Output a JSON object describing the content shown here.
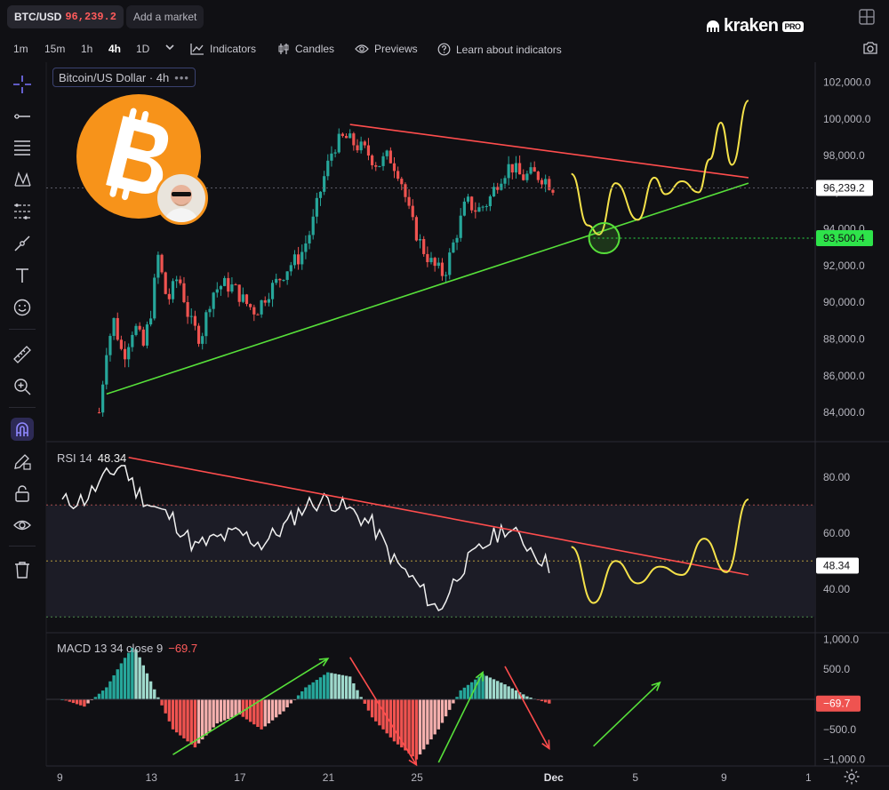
{
  "header": {
    "pair": "BTC/USD",
    "price": "96,239.2",
    "add_market": "Add a market",
    "brand": "kraken",
    "brand_tag": "PRO"
  },
  "toolbar": {
    "timeframes": [
      "1m",
      "15m",
      "1h",
      "4h",
      "1D"
    ],
    "active_timeframe": "4h",
    "indicators_label": "Indicators",
    "candles_label": "Candles",
    "previews_label": "Previews",
    "learn_label": "Learn about indicators"
  },
  "legend": {
    "main": "Bitcoin/US Dollar · 4h",
    "rsi_label": "RSI 14",
    "rsi_value": "48.34",
    "macd_label": "MACD 13 34 close 9",
    "macd_value": "−69.7"
  },
  "colors": {
    "up": "#26a69a",
    "down": "#ef5350",
    "resistance": "#ff4d4d",
    "support": "#57e03a",
    "projection": "#f5e24a",
    "current_price": "#ffffff",
    "target_price": "#2ee34a",
    "bitcoin": "#f7931a"
  },
  "chart_data": [
    {
      "type": "candlestick",
      "title": "Bitcoin/US Dollar · 4h",
      "ylim": [
        82500,
        103000
      ],
      "y_ticks": [
        "102,000.0",
        "100,000.0",
        "98,000.0",
        "96,000.0",
        "94,000.0",
        "92,000.0",
        "90,000.0",
        "88,000.0",
        "86,000.0",
        "84,000.0"
      ],
      "x_ticks": [
        "9",
        "13",
        "17",
        "21",
        "25",
        "Dec",
        "5",
        "9",
        "1"
      ],
      "price_labels": {
        "current": "96,239.2",
        "target": "93,500.4"
      },
      "close_path": [
        [
          "Nov 11",
          84000
        ],
        [
          "Nov 11",
          87500
        ],
        [
          "Nov 11",
          89000
        ],
        [
          "Nov 12",
          87000
        ],
        [
          "Nov 12",
          88800
        ],
        [
          "Nov 13",
          87600
        ],
        [
          "Nov 13",
          89500
        ],
        [
          "Nov 13",
          92500
        ],
        [
          "Nov 14",
          90000
        ],
        [
          "Nov 14",
          91500
        ],
        [
          "Nov 15",
          89000
        ],
        [
          "Nov 15",
          88000
        ],
        [
          "Nov 16",
          90500
        ],
        [
          "Nov 16",
          91000
        ],
        [
          "Nov 17",
          90800
        ],
        [
          "Nov 17",
          90000
        ],
        [
          "Nov 18",
          89500
        ],
        [
          "Nov 18",
          90500
        ],
        [
          "Nov 19",
          91200
        ],
        [
          "Nov 19",
          92000
        ],
        [
          "Nov 20",
          92500
        ],
        [
          "Nov 20",
          94000
        ],
        [
          "Nov 21",
          96500
        ],
        [
          "Nov 21",
          98500
        ],
        [
          "Nov 22",
          99000
        ],
        [
          "Nov 22",
          98600
        ],
        [
          "Nov 23",
          98200
        ],
        [
          "Nov 23",
          97500
        ],
        [
          "Nov 24",
          98000
        ],
        [
          "Nov 24",
          97000
        ],
        [
          "Nov 25",
          94500
        ],
        [
          "Nov 25",
          93000
        ],
        [
          "Nov 26",
          92000
        ],
        [
          "Nov 26",
          91500
        ],
        [
          "Nov 27",
          93500
        ],
        [
          "Nov 27",
          95500
        ],
        [
          "Nov 28",
          95000
        ],
        [
          "Nov 28",
          95500
        ],
        [
          "Nov 29",
          96800
        ],
        [
          "Nov 29",
          97500
        ],
        [
          "Nov 30",
          96800
        ],
        [
          "Nov 30",
          97000
        ],
        [
          "Dec 1",
          96800
        ],
        [
          "Dec 1",
          96200
        ]
      ],
      "annotations": {
        "resistance_line": {
          "from": [
            "Nov 22",
            99700
          ],
          "to": [
            "Dec 10",
            96800
          ]
        },
        "support_line": {
          "from": [
            "Nov 11",
            85000
          ],
          "to": [
            "Dec 10",
            96500
          ]
        },
        "projection_path": [
          [
            "Dec 2",
            97000
          ],
          [
            "Dec 3",
            94200
          ],
          [
            "Dec 3",
            93700
          ],
          [
            "Dec 4",
            96500
          ],
          [
            "Dec 5",
            94500
          ],
          [
            "Dec 6",
            96800
          ],
          [
            "Dec 6",
            95900
          ],
          [
            "Dec 7",
            96600
          ],
          [
            "Dec 8",
            96000
          ],
          [
            "Dec 8",
            97800
          ],
          [
            "Dec 9",
            99800
          ],
          [
            "Dec 9",
            97500
          ],
          [
            "Dec 10",
            101000
          ]
        ],
        "target_marker": [
          "Dec 3",
          93500
        ]
      }
    },
    {
      "type": "line",
      "title": "RSI 14",
      "ylim": [
        25,
        92
      ],
      "y_ticks": [
        "80.00",
        "60.00",
        "40.00"
      ],
      "bands": [
        30,
        50,
        70
      ],
      "current": "48.34",
      "values": [
        [
          "Nov 9",
          71
        ],
        [
          "Nov 10",
          72
        ],
        [
          "Nov 11",
          80
        ],
        [
          "Nov 12",
          85
        ],
        [
          "Nov 12",
          76
        ],
        [
          "Nov 13",
          70
        ],
        [
          "Nov 14",
          65
        ],
        [
          "Nov 15",
          55
        ],
        [
          "Nov 16",
          58
        ],
        [
          "Nov 17",
          60
        ],
        [
          "Nov 18",
          56
        ],
        [
          "Nov 19",
          62
        ],
        [
          "Nov 20",
          70
        ],
        [
          "Nov 21",
          72
        ],
        [
          "Nov 22",
          68
        ],
        [
          "Nov 23",
          63
        ],
        [
          "Nov 24",
          50
        ],
        [
          "Nov 25",
          42
        ],
        [
          "Nov 26",
          32
        ],
        [
          "Nov 27",
          47
        ],
        [
          "Nov 28",
          55
        ],
        [
          "Nov 29",
          62
        ],
        [
          "Nov 30",
          56
        ],
        [
          "Dec 1",
          48
        ]
      ],
      "annotations": {
        "trend_line": {
          "from": [
            "Nov 12",
            87
          ],
          "to": [
            "Dec 10",
            45
          ]
        },
        "projection_path": [
          [
            "Dec 2",
            55
          ],
          [
            "Dec 3",
            35
          ],
          [
            "Dec 4",
            50
          ],
          [
            "Dec 5",
            42
          ],
          [
            "Dec 6",
            48
          ],
          [
            "Dec 7",
            45
          ],
          [
            "Dec 8",
            58
          ],
          [
            "Dec 9",
            46
          ],
          [
            "Dec 10",
            72
          ]
        ]
      }
    },
    {
      "type": "bar",
      "title": "MACD 13 34 close 9",
      "ylim": [
        -1080,
        1080
      ],
      "y_ticks": [
        "1,000.0",
        "500.0",
        "−500.0",
        "−1,000.0"
      ],
      "current": "−69.7",
      "histogram": [
        [
          "Nov 9",
          0
        ],
        [
          "Nov 10",
          -120
        ],
        [
          "Nov 11",
          200
        ],
        [
          "Nov 12",
          650
        ],
        [
          "Nov 12",
          900
        ],
        [
          "Nov 13",
          300
        ],
        [
          "Nov 14",
          -500
        ],
        [
          "Nov 15",
          -800
        ],
        [
          "Nov 16",
          -400
        ],
        [
          "Nov 17",
          -250
        ],
        [
          "Nov 18",
          -500
        ],
        [
          "Nov 19",
          -200
        ],
        [
          "Nov 20",
          200
        ],
        [
          "Nov 21",
          450
        ],
        [
          "Nov 22",
          380
        ],
        [
          "Nov 23",
          -300
        ],
        [
          "Nov 24",
          -700
        ],
        [
          "Nov 25",
          -1000
        ],
        [
          "Nov 26",
          -500
        ],
        [
          "Nov 27",
          150
        ],
        [
          "Nov 28",
          420
        ],
        [
          "Nov 29",
          250
        ],
        [
          "Nov 30",
          50
        ],
        [
          "Dec 1",
          -70
        ]
      ],
      "annotations": {
        "arrows": [
          {
            "color": "#57e03a",
            "from": [
              "Nov 14",
              -920
            ],
            "to": [
              "Nov 21",
              680
            ]
          },
          {
            "color": "#ff4d4d",
            "from": [
              "Nov 22",
              700
            ],
            "to": [
              "Nov 25",
              -1090
            ]
          },
          {
            "color": "#57e03a",
            "from": [
              "Nov 26",
              -1050
            ],
            "to": [
              "Nov 28",
              450
            ]
          },
          {
            "color": "#ff4d4d",
            "from": [
              "Nov 29",
              550
            ],
            "to": [
              "Dec 1",
              -820
            ]
          },
          {
            "color": "#57e03a",
            "from": [
              "Dec 3",
              -780
            ],
            "to": [
              "Dec 6",
              280
            ]
          }
        ]
      }
    }
  ]
}
